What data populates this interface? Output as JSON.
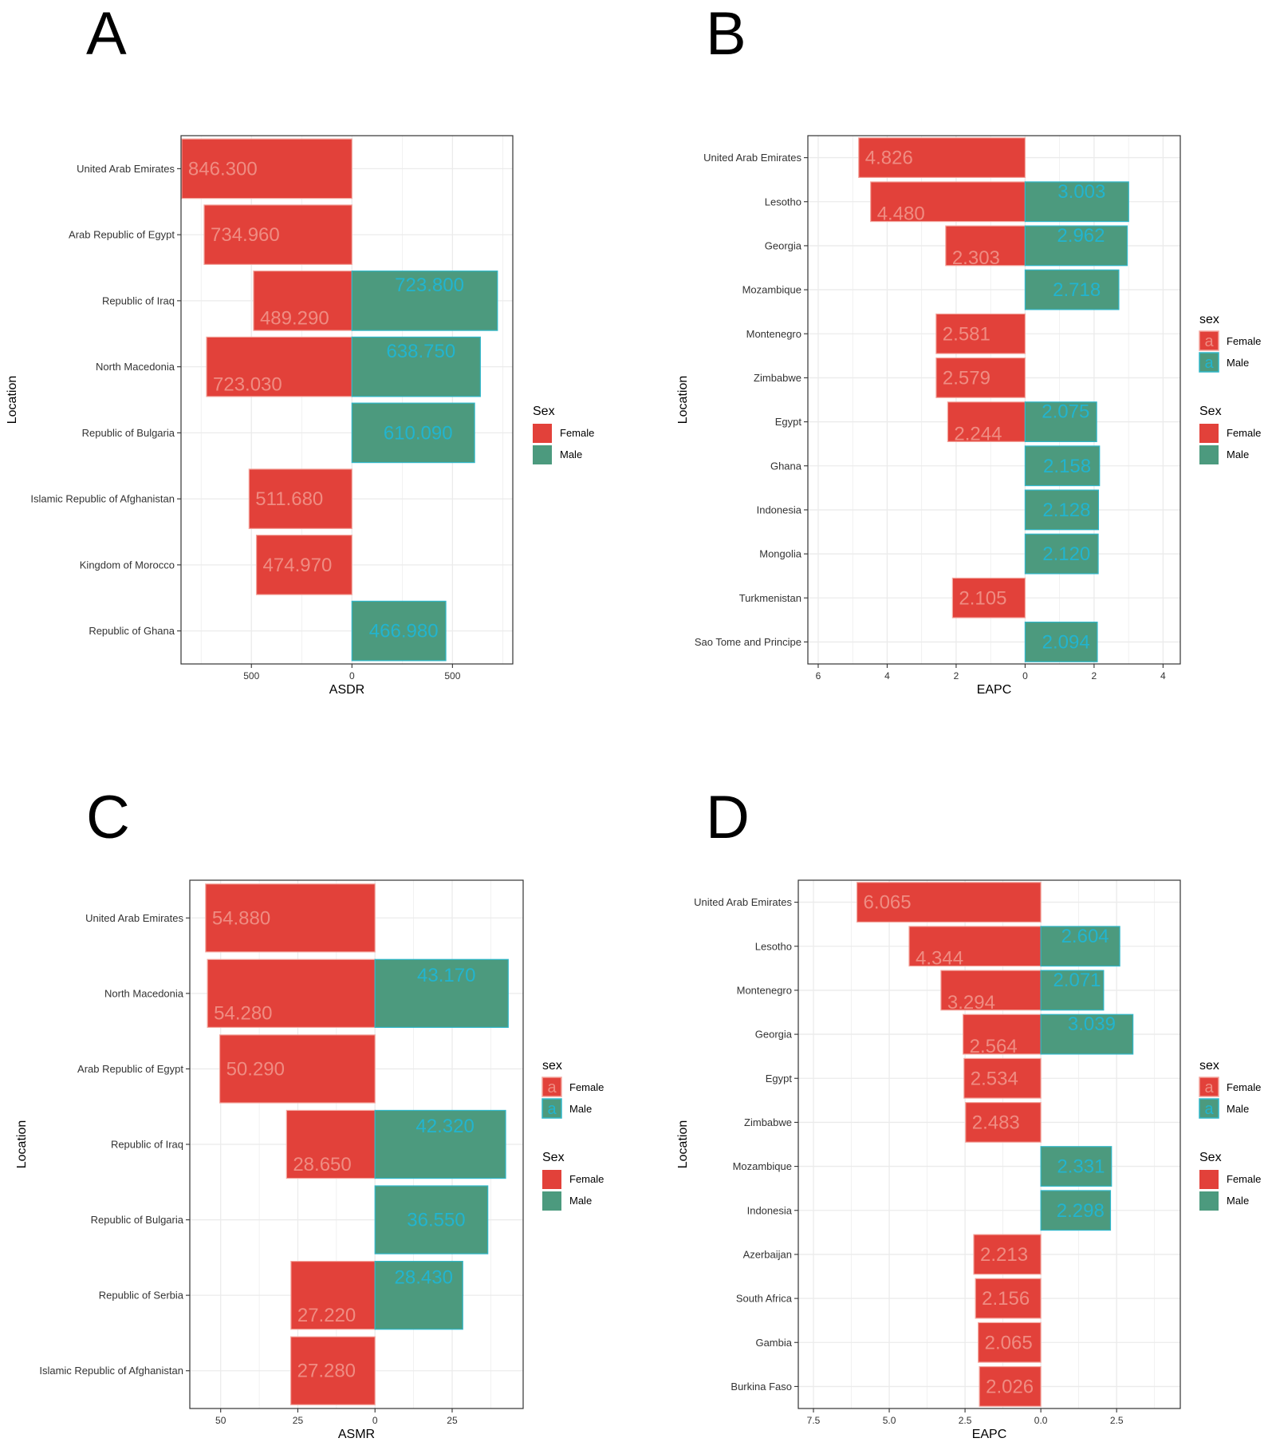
{
  "colors": {
    "female": "#E2413A",
    "male": "#4C9A7E",
    "female_text": "#EF8C82",
    "male_text": "#22B4CF",
    "female_border": "#F3A59D",
    "male_border": "#30B7C9"
  },
  "chart_data": [
    {
      "panel": "A",
      "type": "bar",
      "orientation": "horizontal-diverging",
      "xlabel": "ASDR",
      "ylabel": "Location",
      "xlim": [
        -850,
        800
      ],
      "ticks": [
        -500,
        0,
        500
      ],
      "tick_labels": [
        "500",
        "0",
        "500"
      ],
      "legends": [
        {
          "title": "Sex",
          "type": "fill",
          "items": [
            "Female",
            "Male"
          ]
        }
      ],
      "categories": [
        "United Arab Emirates",
        "Arab Republic of Egypt",
        "Republic of Iraq",
        "North Macedonia",
        "Republic of Bulgaria",
        "Islamic Republic of Afghanistan",
        "Kingdom of Morocco",
        "Republic of Ghana"
      ],
      "series": [
        {
          "name": "Female",
          "values": [
            846.3,
            734.96,
            489.29,
            723.03,
            null,
            511.68,
            474.97,
            null
          ],
          "labels": [
            "846.300",
            "734.960",
            "489.290",
            "723.030",
            null,
            "511.680",
            "474.970",
            null
          ]
        },
        {
          "name": "Male",
          "values": [
            null,
            null,
            723.8,
            638.75,
            610.09,
            null,
            null,
            466.98
          ],
          "labels": [
            null,
            null,
            "723.800",
            "638.750",
            "610.090",
            null,
            null,
            "466.980"
          ]
        }
      ]
    },
    {
      "panel": "B",
      "type": "bar",
      "orientation": "horizontal-diverging",
      "xlabel": "EAPC",
      "ylabel": "Location",
      "xlim": [
        -6.3,
        4.5
      ],
      "ticks": [
        -6,
        -4,
        -2,
        0,
        2,
        4
      ],
      "tick_labels": [
        "6",
        "4",
        "2",
        "0",
        "2",
        "4"
      ],
      "legends": [
        {
          "title": "sex",
          "type": "text",
          "items": [
            "Female",
            "Male"
          ]
        },
        {
          "title": "Sex",
          "type": "fill",
          "items": [
            "Female",
            "Male"
          ]
        }
      ],
      "categories": [
        "United Arab Emirates",
        "Lesotho",
        "Georgia",
        "Mozambique",
        "Montenegro",
        "Zimbabwe",
        "Egypt",
        "Ghana",
        "Indonesia",
        "Mongolia",
        "Turkmenistan",
        "Sao Tome and Principe"
      ],
      "series": [
        {
          "name": "Female",
          "values": [
            4.826,
            4.48,
            2.303,
            null,
            2.581,
            2.579,
            2.244,
            null,
            null,
            null,
            2.105,
            null
          ],
          "labels": [
            "4.826",
            "4.480",
            "2.303",
            null,
            "2.581",
            "2.579",
            "2.244",
            null,
            null,
            null,
            "2.105",
            null
          ]
        },
        {
          "name": "Male",
          "values": [
            null,
            3.003,
            2.962,
            2.718,
            null,
            null,
            2.075,
            2.158,
            2.128,
            2.12,
            null,
            2.094
          ],
          "labels": [
            null,
            "3.003",
            "2.962",
            "2.718",
            null,
            null,
            "2.075",
            "2.158",
            "2.128",
            "2.120",
            null,
            "2.094"
          ]
        }
      ]
    },
    {
      "panel": "C",
      "type": "bar",
      "orientation": "horizontal-diverging",
      "xlabel": "ASMR",
      "ylabel": "Location",
      "xlim": [
        -60,
        48
      ],
      "ticks": [
        -50,
        -25,
        0,
        25
      ],
      "tick_labels": [
        "50",
        "25",
        "0",
        "25"
      ],
      "legends": [
        {
          "title": "sex",
          "type": "text",
          "items": [
            "Female",
            "Male"
          ]
        },
        {
          "title": "Sex",
          "type": "fill",
          "items": [
            "Female",
            "Male"
          ]
        }
      ],
      "categories": [
        "United Arab Emirates",
        "North Macedonia",
        "Arab Republic of Egypt",
        "Republic of Iraq",
        "Republic of Bulgaria",
        "Republic of Serbia",
        "Islamic Republic of Afghanistan"
      ],
      "series": [
        {
          "name": "Female",
          "values": [
            54.88,
            54.28,
            50.29,
            28.65,
            null,
            27.22,
            27.28
          ],
          "labels": [
            "54.880",
            "54.280",
            "50.290",
            "28.650",
            null,
            "27.220",
            "27.280"
          ]
        },
        {
          "name": "Male",
          "values": [
            null,
            43.17,
            null,
            42.32,
            36.55,
            28.43,
            null
          ],
          "labels": [
            null,
            "43.170",
            null,
            "42.320",
            "36.550",
            "28.430",
            null
          ]
        }
      ]
    },
    {
      "panel": "D",
      "type": "bar",
      "orientation": "horizontal-diverging",
      "xlabel": "EAPC",
      "ylabel": "Location",
      "xlim": [
        -8.0,
        4.6
      ],
      "ticks": [
        -7.5,
        -5.0,
        -2.5,
        0.0,
        2.5
      ],
      "tick_labels": [
        "7.5",
        "5.0",
        "2.5",
        "0.0",
        "2.5"
      ],
      "legends": [
        {
          "title": "sex",
          "type": "text",
          "items": [
            "Female",
            "Male"
          ]
        },
        {
          "title": "Sex",
          "type": "fill",
          "items": [
            "Female",
            "Male"
          ]
        }
      ],
      "categories": [
        "United Arab Emirates",
        "Lesotho",
        "Montenegro",
        "Georgia",
        "Egypt",
        "Zimbabwe",
        "Mozambique",
        "Indonesia",
        "Azerbaijan",
        "South Africa",
        "Gambia",
        "Burkina Faso"
      ],
      "series": [
        {
          "name": "Female",
          "values": [
            6.065,
            4.344,
            3.294,
            2.564,
            2.534,
            2.483,
            null,
            null,
            2.213,
            2.156,
            2.065,
            2.026
          ],
          "labels": [
            "6.065",
            "4.344",
            "3.294",
            "2.564",
            "2.534",
            "2.483",
            null,
            null,
            "2.213",
            "2.156",
            "2.065",
            "2.026"
          ]
        },
        {
          "name": "Male",
          "values": [
            null,
            2.604,
            2.071,
            3.039,
            null,
            null,
            2.331,
            2.298,
            null,
            null,
            null,
            null
          ],
          "labels": [
            null,
            "2.604",
            "2.071",
            "3.039",
            null,
            null,
            "2.331",
            "2.298",
            null,
            null,
            null,
            null
          ]
        }
      ]
    }
  ]
}
